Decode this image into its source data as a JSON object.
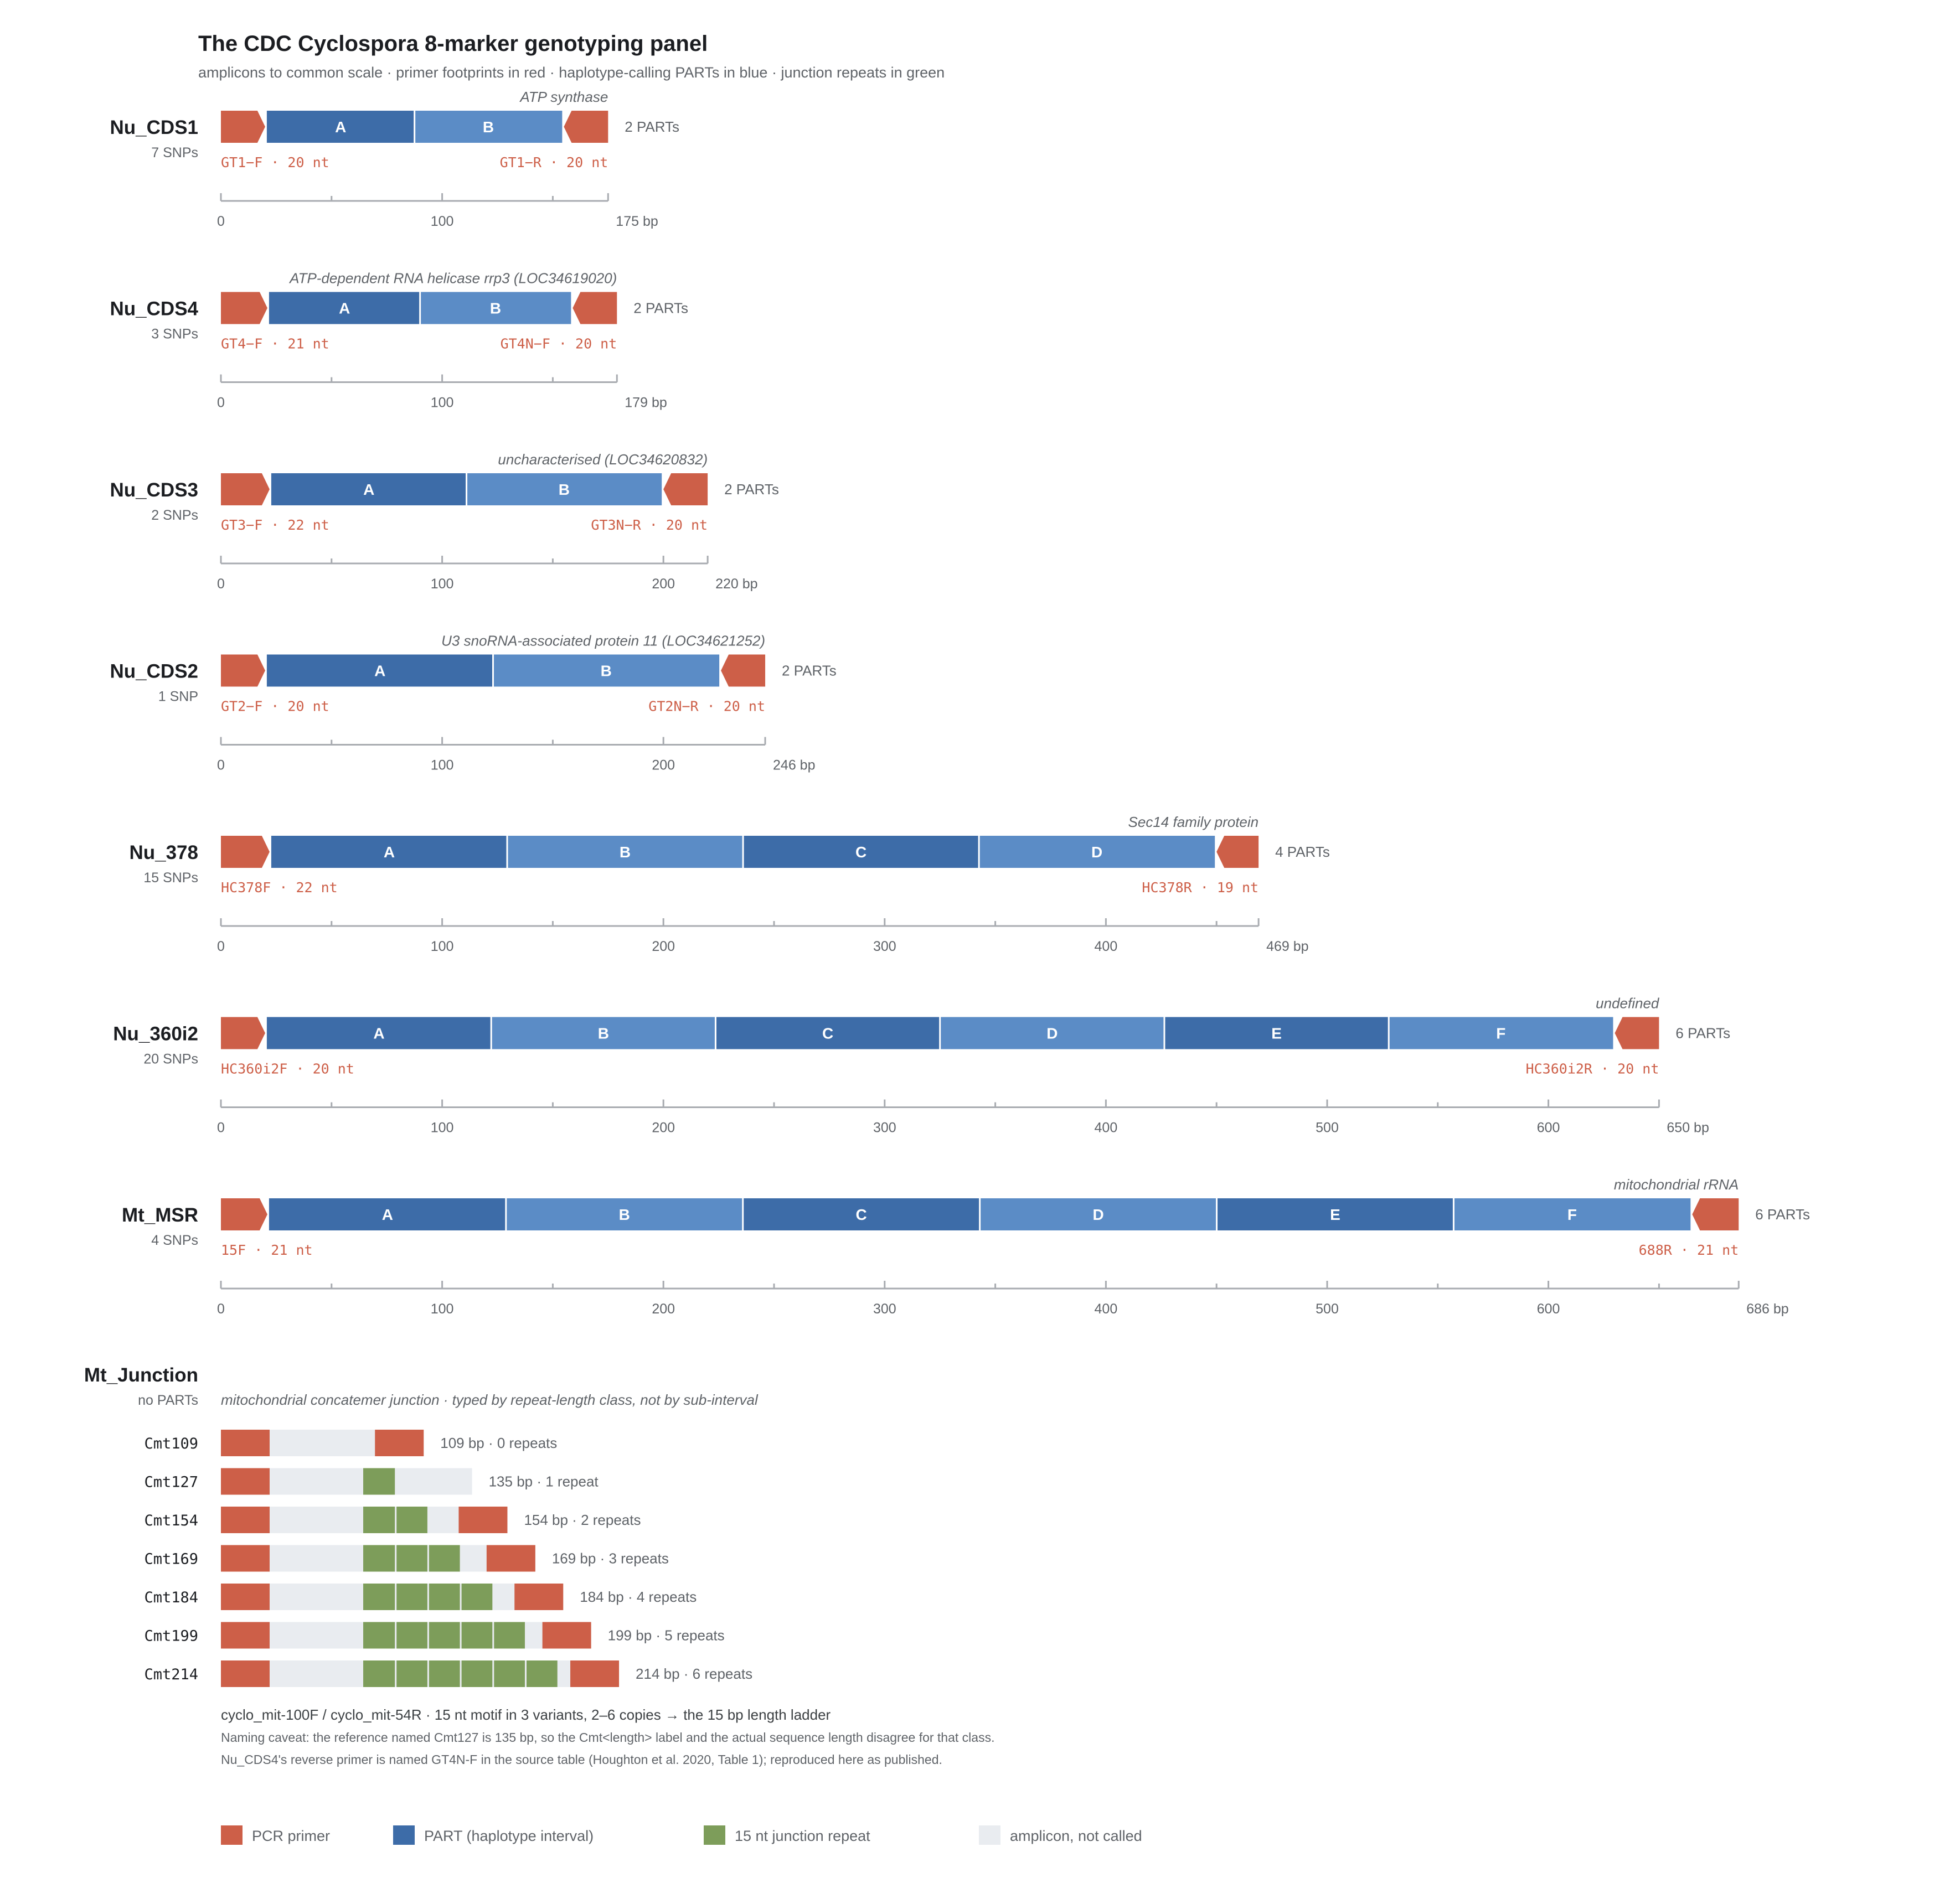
{
  "title": "The CDC Cyclospora 8-marker genotyping panel",
  "subtitle": "amplicons to common scale · primer footprints in red · haplotype-calling PARTs in blue · junction repeats in green",
  "colors": {
    "primer": "#cd5f48",
    "part_dark": "#3d6ca8",
    "part_light": "#5b8cc6",
    "repeat": "#7d9d5a",
    "amplicon": "#e9ecf0",
    "axis": "#a8abb0",
    "text_dark": "#1b1d21",
    "text_gray": "#5f6368"
  },
  "bp_unit": "bp",
  "markers": [
    {
      "name": "Nu_CDS1",
      "snps": "7 SNPs",
      "gene": "ATP synthase",
      "length": 175,
      "length_label": "175 bp",
      "fwd": {
        "name": "GT1−F",
        "nt": 20,
        "label": "GT1−F · 20 nt"
      },
      "rev": {
        "name": "GT1−R",
        "nt": 20,
        "label": "GT1−R · 20 nt"
      },
      "parts": [
        "A",
        "B"
      ],
      "parts_label": "2 PARTs",
      "ticks": [
        "0",
        "100"
      ]
    },
    {
      "name": "Nu_CDS4",
      "snps": "3 SNPs",
      "gene": "ATP-dependent RNA helicase rrp3 (LOC34619020)",
      "length": 179,
      "length_label": "179 bp",
      "fwd": {
        "name": "GT4−F",
        "nt": 21,
        "label": "GT4−F · 21 nt"
      },
      "rev": {
        "name": "GT4N−F",
        "nt": 20,
        "label": "GT4N−F · 20 nt"
      },
      "parts": [
        "A",
        "B"
      ],
      "parts_label": "2 PARTs",
      "ticks": [
        "0",
        "100"
      ]
    },
    {
      "name": "Nu_CDS3",
      "snps": "2 SNPs",
      "gene": "uncharacterised (LOC34620832)",
      "length": 220,
      "length_label": "220 bp",
      "fwd": {
        "name": "GT3−F",
        "nt": 22,
        "label": "GT3−F · 22 nt"
      },
      "rev": {
        "name": "GT3N−R",
        "nt": 20,
        "label": "GT3N−R · 20 nt"
      },
      "parts": [
        "A",
        "B"
      ],
      "parts_label": "2 PARTs",
      "ticks": [
        "0",
        "100",
        "200"
      ]
    },
    {
      "name": "Nu_CDS2",
      "snps": "1 SNP",
      "gene": "U3 snoRNA-associated protein 11 (LOC34621252)",
      "length": 246,
      "length_label": "246 bp",
      "fwd": {
        "name": "GT2−F",
        "nt": 20,
        "label": "GT2−F · 20 nt"
      },
      "rev": {
        "name": "GT2N−R",
        "nt": 20,
        "label": "GT2N−R · 20 nt"
      },
      "parts": [
        "A",
        "B"
      ],
      "parts_label": "2 PARTs",
      "ticks": [
        "0",
        "100",
        "200"
      ]
    },
    {
      "name": "Nu_378",
      "snps": "15 SNPs",
      "gene": "Sec14 family protein",
      "length": 469,
      "length_label": "469 bp",
      "fwd": {
        "name": "HC378F",
        "nt": 22,
        "label": "HC378F · 22 nt"
      },
      "rev": {
        "name": "HC378R",
        "nt": 19,
        "label": "HC378R · 19 nt"
      },
      "parts": [
        "A",
        "B",
        "C",
        "D"
      ],
      "parts_label": "4 PARTs",
      "ticks": [
        "0",
        "100",
        "200",
        "300",
        "400"
      ]
    },
    {
      "name": "Nu_360i2",
      "snps": "20 SNPs",
      "gene": "undefined",
      "length": 650,
      "length_label": "650 bp",
      "fwd": {
        "name": "HC360i2F",
        "nt": 20,
        "label": "HC360i2F · 20 nt"
      },
      "rev": {
        "name": "HC360i2R",
        "nt": 20,
        "label": "HC360i2R · 20 nt"
      },
      "parts": [
        "A",
        "B",
        "C",
        "D",
        "E",
        "F"
      ],
      "parts_label": "6 PARTs",
      "ticks": [
        "0",
        "100",
        "200",
        "300",
        "400",
        "500",
        "600"
      ]
    },
    {
      "name": "Mt_MSR",
      "snps": "4 SNPs",
      "gene": "mitochondrial rRNA",
      "length": 686,
      "length_label": "686 bp",
      "fwd": {
        "name": "15F",
        "nt": 21,
        "label": "15F · 21 nt"
      },
      "rev": {
        "name": "688R",
        "nt": 21,
        "label": "688R · 21 nt"
      },
      "parts": [
        "A",
        "B",
        "C",
        "D",
        "E",
        "F"
      ],
      "parts_label": "6 PARTs",
      "ticks": [
        "0",
        "100",
        "200",
        "300",
        "400",
        "500",
        "600"
      ]
    }
  ],
  "junction": {
    "name": "Mt_Junction",
    "sub": "no PARTs",
    "description": "mitochondrial concatemer junction · typed by repeat-length class, not by sub-interval",
    "alleles": [
      {
        "name": "Cmt109",
        "length": 109,
        "repeats": 0,
        "label": "109 bp · 0 repeats",
        "rev_primer": true
      },
      {
        "name": "Cmt127",
        "length": 135,
        "repeats": 1,
        "label": "135 bp · 1 repeat",
        "rev_primer": false
      },
      {
        "name": "Cmt154",
        "length": 154,
        "repeats": 2,
        "label": "154 bp · 2 repeats",
        "rev_primer": true
      },
      {
        "name": "Cmt169",
        "length": 169,
        "repeats": 3,
        "label": "169 bp · 3 repeats",
        "rev_primer": true
      },
      {
        "name": "Cmt184",
        "length": 184,
        "repeats": 4,
        "label": "184 bp · 4 repeats",
        "rev_primer": true
      },
      {
        "name": "Cmt199",
        "length": 199,
        "repeats": 5,
        "label": "199 bp · 5 repeats",
        "rev_primer": true
      },
      {
        "name": "Cmt214",
        "length": 214,
        "repeats": 6,
        "label": "214 bp · 6 repeats",
        "rev_primer": true
      }
    ],
    "notes": [
      "cyclo_mit-100F / cyclo_mit-54R · 15 nt motif in 3 variants, 2–6 copies → the 15 bp length ladder",
      "Naming caveat: the reference named Cmt127 is 135 bp, so the Cmt<length> label and the actual sequence length disagree for that class.",
      "Nu_CDS4's reverse primer is named GT4N-F in the source table (Houghton et al. 2020, Table 1); reproduced here as published."
    ]
  },
  "legend": [
    {
      "label": "PCR primer",
      "color": "#cd5f48"
    },
    {
      "label": "PART (haplotype interval)",
      "color": "#3d6ca8"
    },
    {
      "label": "15 nt junction repeat",
      "color": "#7d9d5a"
    },
    {
      "label": "amplicon, not called",
      "color": "#e9ecf0"
    }
  ]
}
